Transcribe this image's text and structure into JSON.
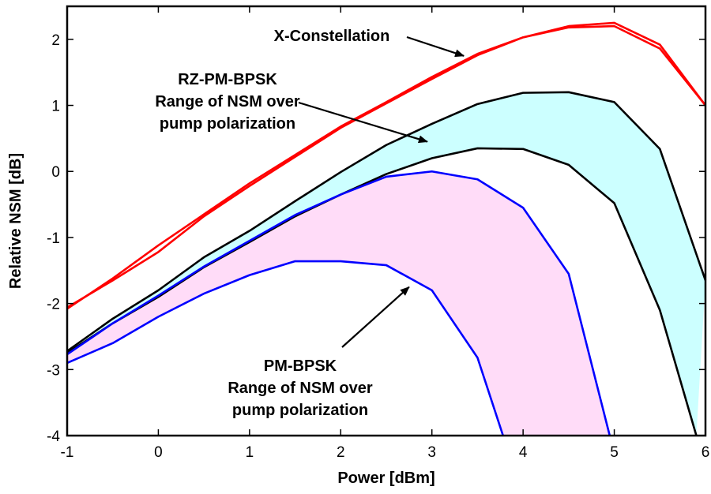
{
  "chart_data": {
    "type": "line",
    "title": "",
    "xlabel": "Power [dBm]",
    "ylabel": "Relative NSM [dB]",
    "xlim": [
      -1,
      6
    ],
    "ylim": [
      -4,
      2.5
    ],
    "xticks": [
      -1,
      0,
      1,
      2,
      3,
      4,
      5,
      6
    ],
    "yticks": [
      2,
      1,
      0,
      -1,
      -2,
      -3,
      -4
    ],
    "grid": false,
    "colors": {
      "x_constellation": "#ff0000",
      "rz_pm_bpsk": "#000000",
      "pm_bpsk": "#0000ff",
      "rz_fill": "#ccffff",
      "pm_fill": "#ffdcf8"
    },
    "series": [
      {
        "group": "x_constellation",
        "x": [
          -1,
          -0.5,
          0,
          0.5,
          1,
          1.5,
          2,
          2.5,
          3,
          3.5,
          4,
          4.5,
          5,
          5.5,
          6
        ],
        "values": [
          -2.08,
          -1.62,
          -1.12,
          -0.65,
          -0.18,
          0.25,
          0.68,
          1.05,
          1.43,
          1.78,
          2.03,
          2.2,
          2.25,
          1.92,
          1.0
        ]
      },
      {
        "group": "x_constellation",
        "x": [
          -1,
          -0.5,
          0,
          0.5,
          1,
          1.5,
          2,
          2.5,
          3,
          3.5,
          4,
          4.5,
          5,
          5.5,
          6
        ],
        "values": [
          -2.06,
          -1.65,
          -1.22,
          -0.68,
          -0.22,
          0.22,
          0.66,
          1.03,
          1.4,
          1.76,
          2.03,
          2.18,
          2.2,
          1.86,
          1.0
        ]
      },
      {
        "group": "rz_pm_bpsk",
        "x": [
          -1,
          -0.5,
          0,
          0.5,
          1,
          1.5,
          2,
          2.5,
          3,
          3.5,
          4,
          4.5,
          5,
          5.5,
          6
        ],
        "values": [
          -2.72,
          -2.23,
          -1.8,
          -1.3,
          -0.9,
          -0.45,
          -0.01,
          0.4,
          0.72,
          1.02,
          1.19,
          1.2,
          1.05,
          0.34,
          -1.65
        ]
      },
      {
        "group": "rz_pm_bpsk",
        "x": [
          -1,
          -0.5,
          0,
          0.5,
          1,
          1.5,
          2,
          2.5,
          3,
          3.5,
          4,
          4.5,
          5,
          5.5,
          5.9
        ],
        "values": [
          -2.75,
          -2.3,
          -1.9,
          -1.45,
          -1.07,
          -0.68,
          -0.35,
          -0.04,
          0.2,
          0.35,
          0.34,
          0.1,
          -0.48,
          -2.1,
          -4.0
        ]
      },
      {
        "group": "pm_bpsk",
        "x": [
          -1,
          -0.5,
          0,
          0.5,
          1,
          1.5,
          2,
          2.5,
          3,
          3.5,
          4,
          4.5,
          4.95
        ],
        "values": [
          -2.77,
          -2.3,
          -1.88,
          -1.44,
          -1.05,
          -0.66,
          -0.35,
          -0.08,
          0.0,
          -0.12,
          -0.55,
          -1.55,
          -4.0
        ]
      },
      {
        "group": "pm_bpsk",
        "x": [
          -1,
          -0.5,
          0,
          0.5,
          1,
          1.5,
          2,
          2.5,
          3,
          3.5,
          3.78
        ],
        "values": [
          -2.9,
          -2.6,
          -2.2,
          -1.85,
          -1.57,
          -1.36,
          -1.36,
          -1.42,
          -1.8,
          -2.82,
          -4.0
        ]
      }
    ],
    "fills": [
      {
        "between": [
          2,
          3
        ],
        "color": "#ccffff"
      },
      {
        "between": [
          4,
          5
        ],
        "color": "#ffdcf8"
      }
    ],
    "annotations": [
      {
        "lines": [
          "X-Constellation"
        ],
        "arrow_to": [
          3.35,
          1.75
        ]
      },
      {
        "lines": [
          "RZ-PM-BPSK",
          "Range of NSM over",
          "pump polarization"
        ],
        "arrow_to": [
          2.95,
          0.45
        ]
      },
      {
        "lines": [
          "PM-BPSK",
          "Range of NSM over",
          "pump polarization"
        ],
        "arrow_to": [
          2.75,
          -1.75
        ]
      }
    ]
  }
}
